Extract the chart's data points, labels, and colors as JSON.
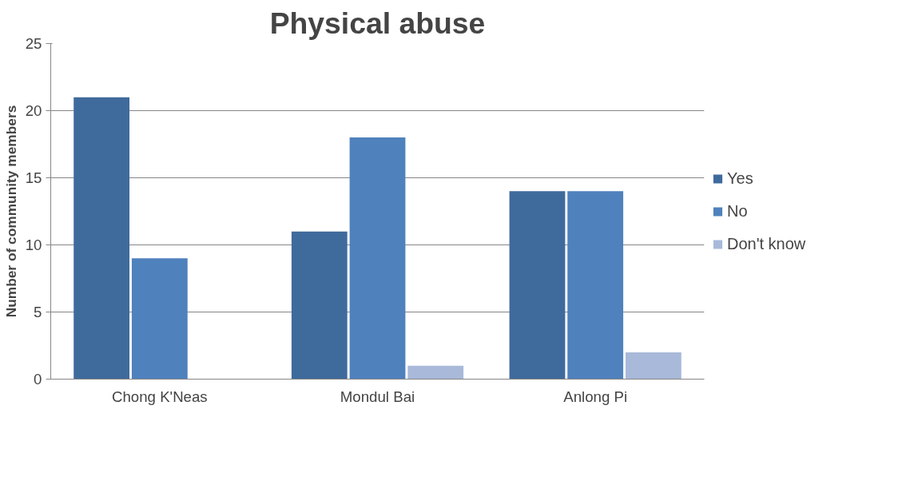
{
  "chart_data": {
    "type": "bar",
    "title": "Physical abuse",
    "ylabel": "Number of community members",
    "categories": [
      "Chong K'Neas",
      "Mondul Bai",
      "Anlong Pi"
    ],
    "series": [
      {
        "name": "Yes",
        "color": "#3f6a9c",
        "values": [
          21,
          11,
          14
        ]
      },
      {
        "name": "No",
        "color": "#4f81bd",
        "values": [
          9,
          18,
          14
        ]
      },
      {
        "name": "Don't know",
        "color": "#a8b9d9",
        "values": [
          0,
          1,
          2
        ]
      }
    ],
    "ylim": [
      0,
      25
    ],
    "yticks": [
      0,
      5,
      10,
      15,
      20,
      25
    ],
    "grid": "y",
    "legend": "right"
  }
}
